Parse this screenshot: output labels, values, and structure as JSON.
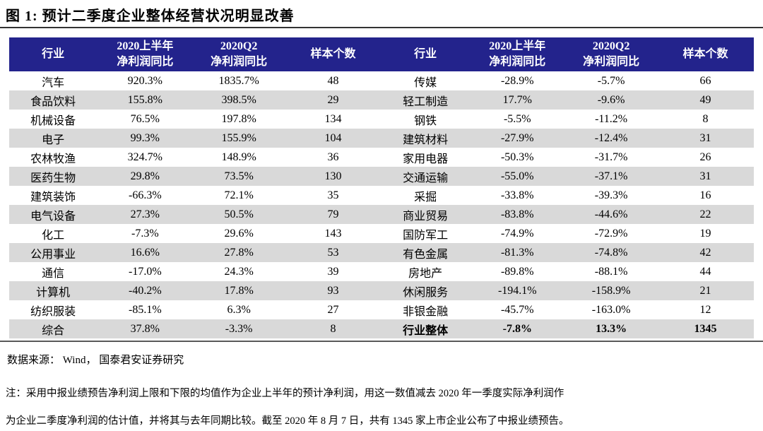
{
  "figure": {
    "title": "图 1:  预计二季度企业整体经营状况明显改善"
  },
  "table": {
    "headers": [
      [
        "行业"
      ],
      [
        "2020上半年",
        "净利润同比"
      ],
      [
        "2020Q2",
        "净利润同比"
      ],
      [
        "样本个数"
      ],
      [
        "行业"
      ],
      [
        "2020上半年",
        "净利润同比"
      ],
      [
        "2020Q2",
        "净利润同比"
      ],
      [
        "样本个数"
      ]
    ],
    "rows": [
      {
        "cells": [
          "汽车",
          "920.3%",
          "1835.7%",
          "48",
          "传媒",
          "-28.9%",
          "-5.7%",
          "66"
        ]
      },
      {
        "cells": [
          "食品饮料",
          "155.8%",
          "398.5%",
          "29",
          "轻工制造",
          "17.7%",
          "-9.6%",
          "49"
        ]
      },
      {
        "cells": [
          "机械设备",
          "76.5%",
          "197.8%",
          "134",
          "钢铁",
          "-5.5%",
          "-11.2%",
          "8"
        ]
      },
      {
        "cells": [
          "电子",
          "99.3%",
          "155.9%",
          "104",
          "建筑材料",
          "-27.9%",
          "-12.4%",
          "31"
        ]
      },
      {
        "cells": [
          "农林牧渔",
          "324.7%",
          "148.9%",
          "36",
          "家用电器",
          "-50.3%",
          "-31.7%",
          "26"
        ]
      },
      {
        "cells": [
          "医药生物",
          "29.8%",
          "73.5%",
          "130",
          "交通运输",
          "-55.0%",
          "-37.1%",
          "31"
        ]
      },
      {
        "cells": [
          "建筑装饰",
          "-66.3%",
          "72.1%",
          "35",
          "采掘",
          "-33.8%",
          "-39.3%",
          "16"
        ]
      },
      {
        "cells": [
          "电气设备",
          "27.3%",
          "50.5%",
          "79",
          "商业贸易",
          "-83.8%",
          "-44.6%",
          "22"
        ]
      },
      {
        "cells": [
          "化工",
          "-7.3%",
          "29.6%",
          "143",
          "国防军工",
          "-74.9%",
          "-72.9%",
          "19"
        ]
      },
      {
        "cells": [
          "公用事业",
          "16.6%",
          "27.8%",
          "53",
          "有色金属",
          "-81.3%",
          "-74.8%",
          "42"
        ]
      },
      {
        "cells": [
          "通信",
          "-17.0%",
          "24.3%",
          "39",
          "房地产",
          "-89.8%",
          "-88.1%",
          "44"
        ]
      },
      {
        "cells": [
          "计算机",
          "-40.2%",
          "17.8%",
          "93",
          "休闲服务",
          "-194.1%",
          "-158.9%",
          "21"
        ]
      },
      {
        "cells": [
          "纺织服装",
          "-85.1%",
          "6.3%",
          "27",
          "非银金融",
          "-45.7%",
          "-163.0%",
          "12"
        ]
      },
      {
        "cells": [
          "综合",
          "37.8%",
          "-3.3%",
          "8",
          "行业整体",
          "-7.8%",
          "13.3%",
          "1345"
        ],
        "bold_right": true
      }
    ]
  },
  "footer": {
    "source": "数据来源： Wind， 国泰君安证券研究",
    "note_line1": "注：采用中报业绩预告净利润上限和下限的均值作为企业上半年的预计净利润，用这一数值减去 2020 年一季度实际净利润作",
    "note_line2": "为企业二季度净利润的估计值，并将其与去年同期比较。截至 2020 年 8 月 7 日，共有 1345 家上市企业公布了中报业绩预告。"
  },
  "colors": {
    "header_bg": "#23238C",
    "header_text": "#FFFFFF",
    "row_alt_bg": "#D9D9D9",
    "title_rule": "#333333",
    "bottom_rule": "#595959"
  }
}
